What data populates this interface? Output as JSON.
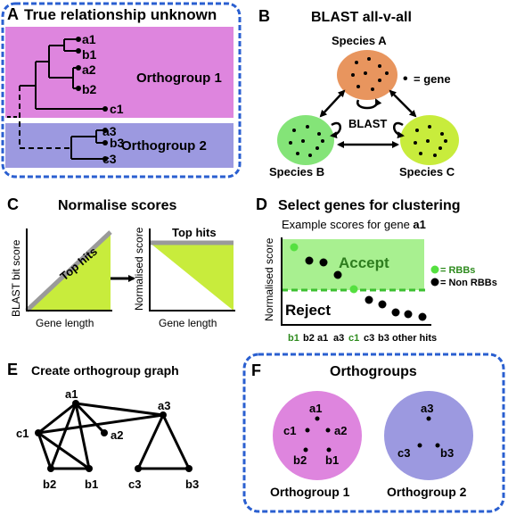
{
  "panel_a": {
    "letter": "A",
    "title": "True relationship unknown",
    "leaves": [
      "a1",
      "b1",
      "a2",
      "b2",
      "c1",
      "a3",
      "b3",
      "c3"
    ],
    "group1_label": "Orthogroup 1",
    "group2_label": "Orthogroup 2",
    "colors": {
      "group1": "#de85de",
      "group2": "#9c99e0",
      "border": "#2a5fd0"
    }
  },
  "panel_b": {
    "letter": "B",
    "title": "BLAST all-v-all",
    "species_a": "Species A",
    "species_b": "Species B",
    "species_c": "Species C",
    "blast_label": "BLAST",
    "legend_dot": "•",
    "legend_text": "= gene",
    "colors": {
      "species_a": "#e8955e",
      "species_b": "#84e478",
      "species_c": "#c8ec3c"
    }
  },
  "panel_c": {
    "letter": "C",
    "title": "Normalise scores",
    "left_ylabel": "BLAST bit score",
    "left_xlabel": "Gene length",
    "left_tophits": "Top hits",
    "right_ylabel": "Normalised score",
    "right_xlabel": "Gene length",
    "right_tophits": "Top hits",
    "colors": {
      "fill": "#c8ec3c",
      "line": "#9a9a9a"
    }
  },
  "panel_d": {
    "letter": "D",
    "title": "Select genes for clustering",
    "subtitle_prefix": "Example scores for gene ",
    "subtitle_gene": "a1",
    "ylabel": "Normalised score",
    "accept_label": "Accept",
    "reject_label": "Reject",
    "legend_rbb": "= RBBs",
    "legend_non_rbb": "= Non RBBs",
    "xlabels": [
      {
        "text": "b1",
        "color": "#2e8b1e"
      },
      {
        "text": "b2",
        "color": "#000000"
      },
      {
        "text": "a1",
        "color": "#000000"
      },
      {
        "text": "a3",
        "color": "#000000"
      },
      {
        "text": "c1",
        "color": "#2e8b1e"
      },
      {
        "text": "c3",
        "color": "#000000"
      },
      {
        "text": "b3",
        "color": "#000000"
      },
      {
        "text": "other hits",
        "color": "#000000"
      }
    ],
    "colors": {
      "accept": "#a8f090",
      "rbb": "#55e040",
      "threshold": "#3cc030",
      "accept_text": "#2e7d1e"
    }
  },
  "panel_e": {
    "letter": "E",
    "title": "Create orthogroup graph",
    "nodes": [
      "a1",
      "c1",
      "a2",
      "b2",
      "b1",
      "a3",
      "c3",
      "b3"
    ]
  },
  "panel_f": {
    "letter": "F",
    "title": "Orthogroups",
    "group1_genes": [
      "a1",
      "c1",
      "a2",
      "b2",
      "b1"
    ],
    "group2_genes": [
      "a3",
      "c3",
      "b3"
    ],
    "group1_label": "Orthogroup 1",
    "group2_label": "Orthogroup 2",
    "colors": {
      "group1": "#de85de",
      "group2": "#9c99e0",
      "border": "#2a5fd0"
    }
  }
}
